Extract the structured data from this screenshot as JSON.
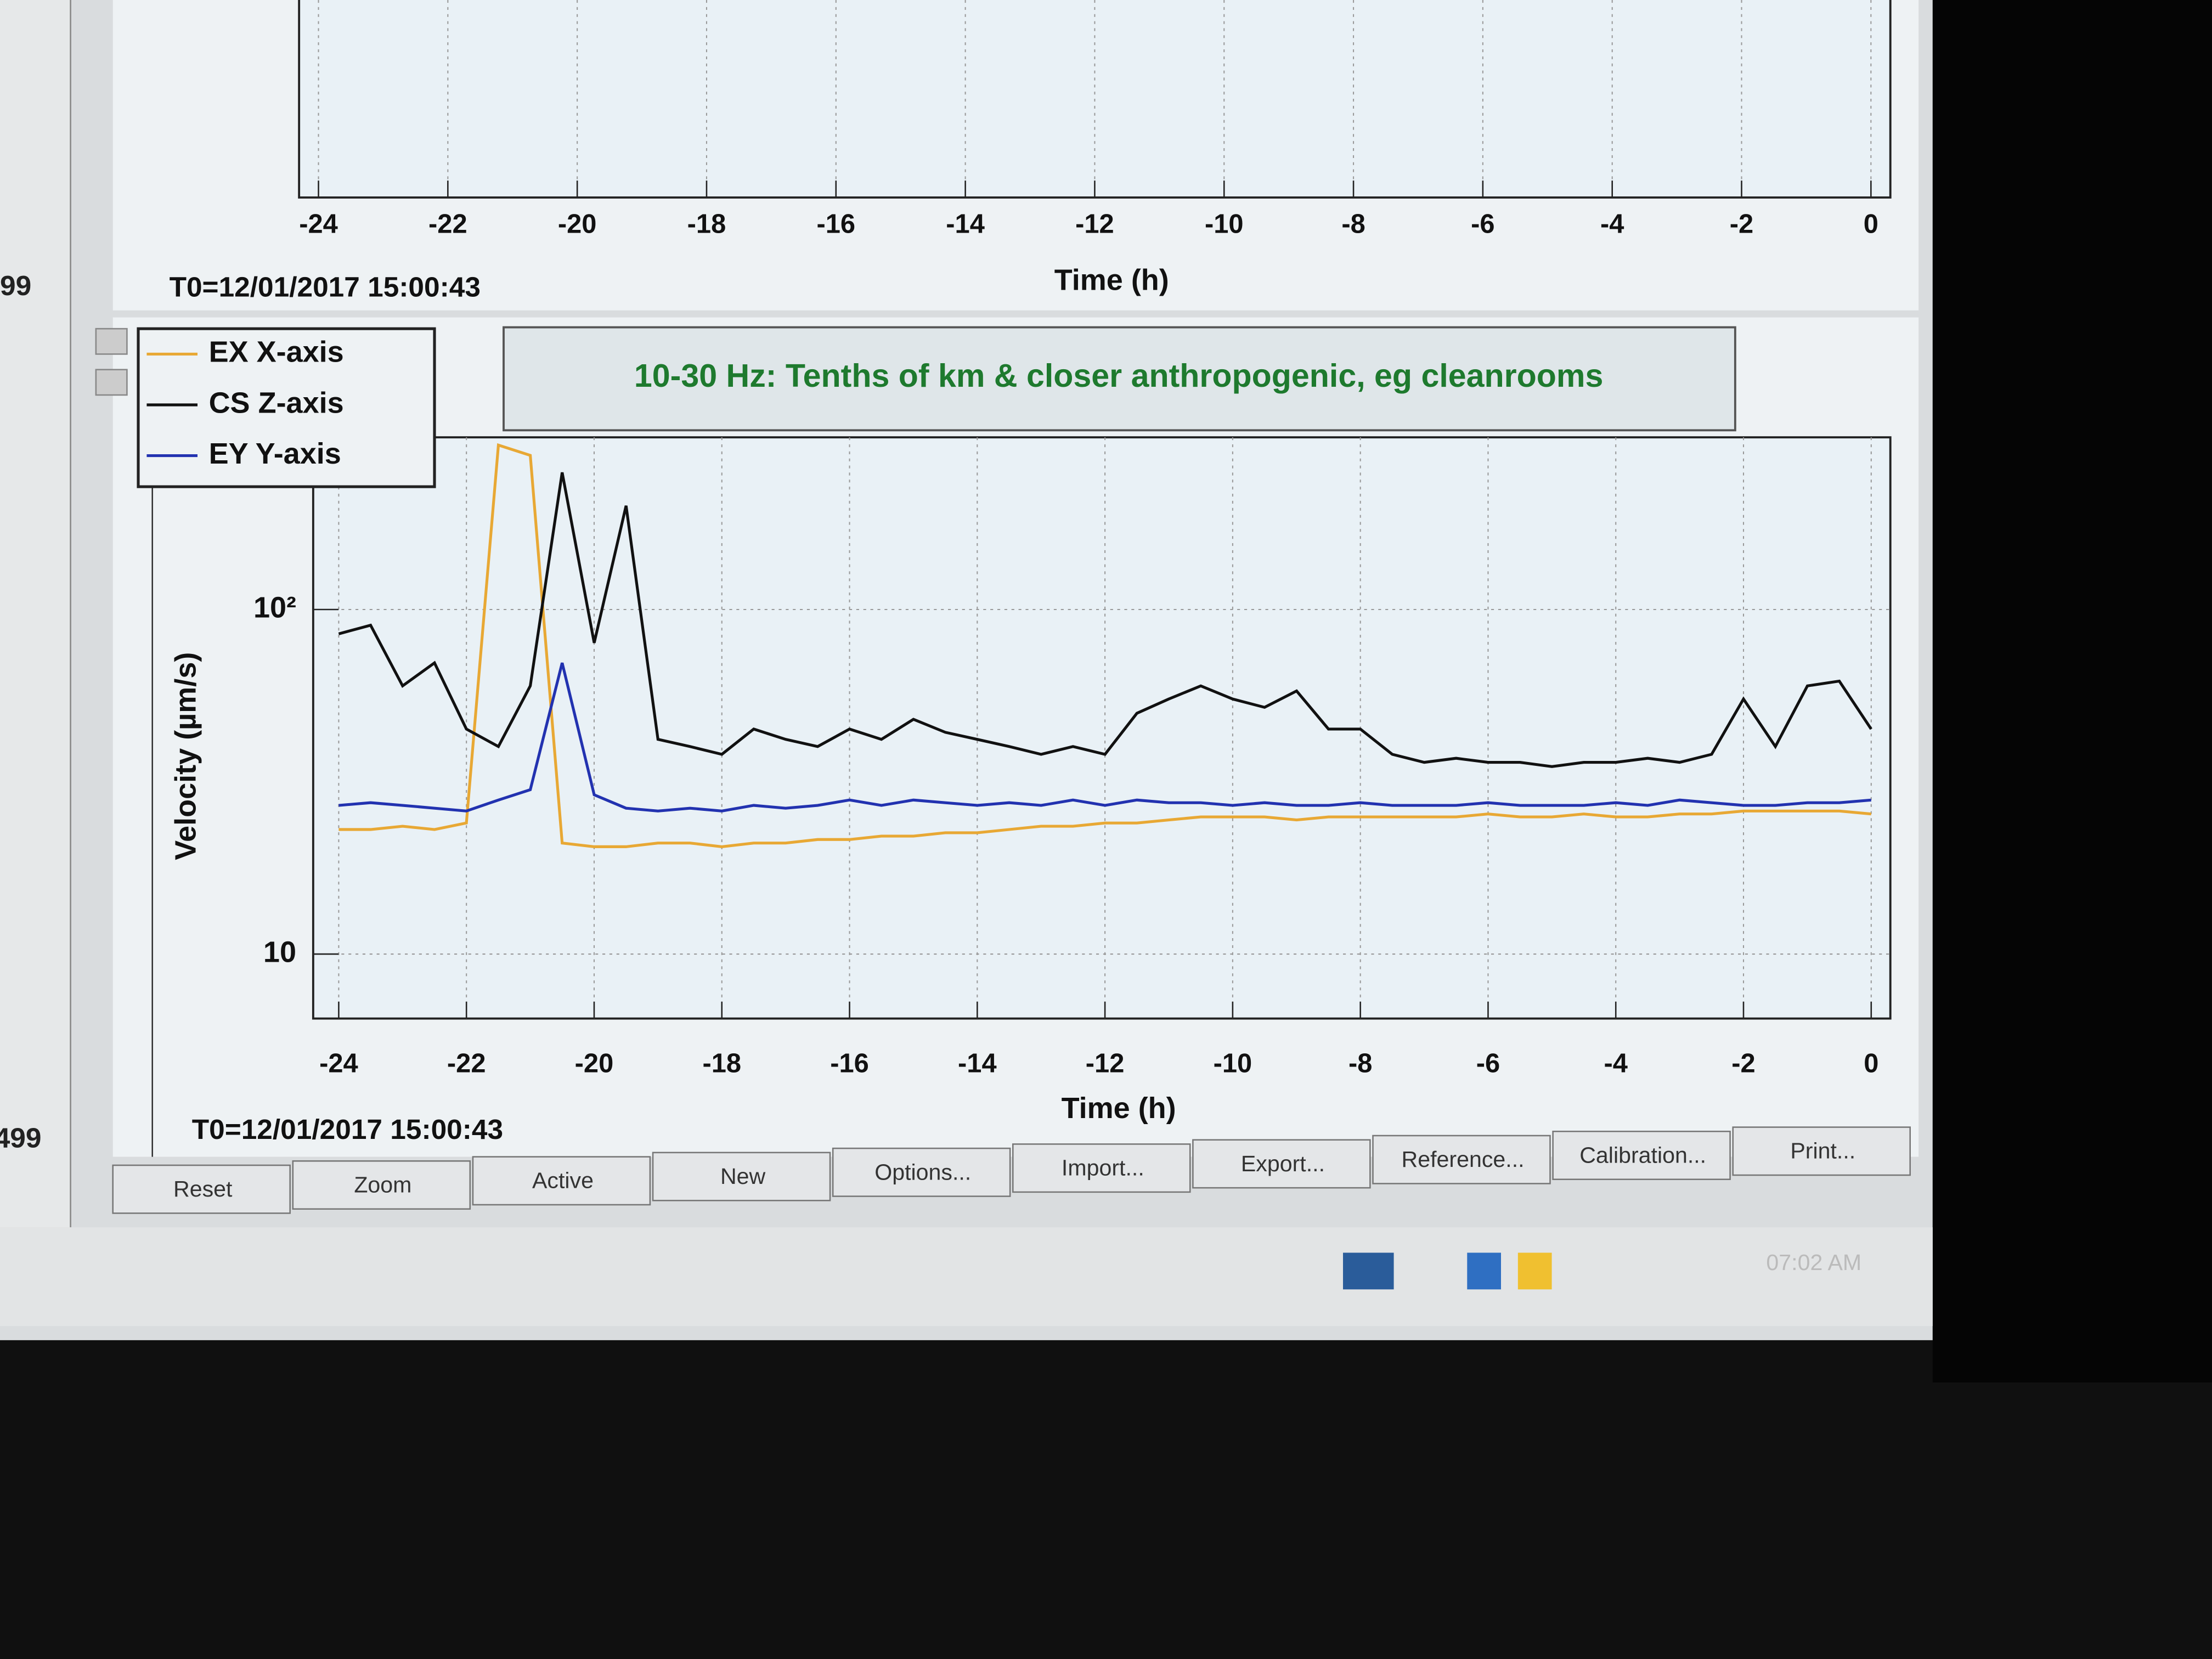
{
  "chart_data": [
    {
      "type": "line",
      "xlabel": "Time (h)",
      "timestamp": "T0=12/01/2017 15:00:43",
      "xlim": [
        -24.3,
        0.3
      ],
      "xticks": [
        -24,
        -22,
        -20,
        -18,
        -16,
        -14,
        -12,
        -10,
        -8,
        -6,
        -4,
        -2,
        0
      ],
      "grid": true
    },
    {
      "type": "line",
      "xlabel": "Time (h)",
      "ylabel": "Velocity  (µm/s)",
      "timestamp": "T0=12/01/2017 15:00:43",
      "annotation": "10-30 Hz: Tenths of km & closer anthropogenic, eg cleanrooms",
      "yscale": "log",
      "grid": true,
      "legend": "top-left",
      "xlim": [
        -24.4,
        0.3
      ],
      "xticks": [
        -24,
        -22,
        -20,
        -18,
        -16,
        -14,
        -12,
        -10,
        -8,
        -6,
        -4,
        -2,
        0
      ],
      "ylim": [
        6.5,
        316
      ],
      "yticks": [
        10,
        {
          "value": 100,
          "label": "10²"
        }
      ],
      "x": [
        -24,
        -23.5,
        -23,
        -22.5,
        -22,
        -21.5,
        -21,
        -20.5,
        -20,
        -19.5,
        -19,
        -18.5,
        -18,
        -17.5,
        -17,
        -16.5,
        -16,
        -15.5,
        -15,
        -14.5,
        -14,
        -13.5,
        -13,
        -12.5,
        -12,
        -11.5,
        -11,
        -10.5,
        -10,
        -9.5,
        -9,
        -8.5,
        -8,
        -7.5,
        -7,
        -6.5,
        -6,
        -5.5,
        -5,
        -4.5,
        -4,
        -3.5,
        -3,
        -2.5,
        -2,
        -1.5,
        -1,
        -0.5,
        0
      ],
      "series": [
        {
          "name": "EX X-axis",
          "color": "#e8a834",
          "values": [
            23,
            23,
            23.5,
            23,
            24,
            300,
            280,
            21,
            20.5,
            20.5,
            21,
            21,
            20.5,
            21,
            21,
            21.5,
            21.5,
            22,
            22,
            22.5,
            22.5,
            23,
            23.5,
            23.5,
            24,
            24,
            24.5,
            25,
            25,
            25,
            24.5,
            25,
            25,
            25,
            25,
            25,
            25.5,
            25,
            25,
            25.5,
            25,
            25,
            25.5,
            25.5,
            26,
            26,
            26,
            26,
            25.5
          ]
        },
        {
          "name": "CS Z-axis",
          "color": "#111111",
          "values": [
            85,
            90,
            60,
            70,
            45,
            40,
            60,
            250,
            80,
            200,
            42,
            40,
            38,
            45,
            42,
            40,
            45,
            42,
            48,
            44,
            42,
            40,
            38,
            40,
            38,
            50,
            55,
            60,
            55,
            52,
            58,
            45,
            45,
            38,
            36,
            37,
            36,
            36,
            35,
            36,
            36,
            37,
            36,
            38,
            55,
            40,
            60,
            62,
            45
          ]
        },
        {
          "name": "EY Y-axis",
          "color": "#2232b0",
          "values": [
            27,
            27.5,
            27,
            26.5,
            26,
            28,
            30,
            70,
            29,
            26.5,
            26,
            26.5,
            26,
            27,
            26.5,
            27,
            28,
            27,
            28,
            27.5,
            27,
            27.5,
            27,
            28,
            27,
            28,
            27.5,
            27.5,
            27,
            27.5,
            27,
            27,
            27.5,
            27,
            27,
            27,
            27.5,
            27,
            27,
            27,
            27.5,
            27,
            28,
            27.5,
            27,
            27,
            27.5,
            27.5,
            28
          ]
        }
      ]
    }
  ],
  "side_panel": {
    "top_value": "99",
    "bottom_value": "499"
  },
  "buttons": [
    "Reset",
    "Zoom",
    "Active",
    "New",
    "Options...",
    "Import...",
    "Export...",
    "Reference...",
    "Calibration...",
    "Print..."
  ],
  "taskbar": {
    "clock": "07:02 AM"
  }
}
